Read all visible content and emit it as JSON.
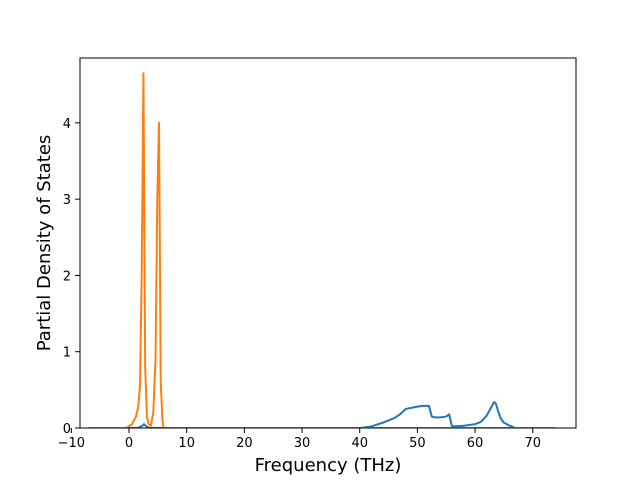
{
  "chart_data": {
    "type": "line",
    "title": "",
    "xlabel": "Frequency (THz)",
    "ylabel": "Partial Density of States",
    "xlim": [
      -8.5,
      77.5
    ],
    "ylim": [
      0,
      4.85
    ],
    "xticks": [
      -10,
      0,
      10,
      20,
      30,
      40,
      50,
      60,
      70
    ],
    "yticks": [
      0,
      1,
      2,
      3,
      4
    ],
    "grid": false,
    "legend": "none",
    "series": [
      {
        "color": "#1f77b4",
        "x": [
          -7,
          0,
          1.5,
          2.3,
          2.6,
          3.0,
          3.5,
          40,
          42,
          44,
          46,
          47,
          48,
          50,
          51,
          52,
          52.5,
          53,
          54,
          55,
          55.5,
          56,
          58,
          60,
          61,
          62,
          62.5,
          63,
          63.3,
          63.6,
          64,
          64.5,
          65,
          66,
          67,
          74
        ],
        "y": [
          0,
          0,
          0,
          0.03,
          0.05,
          0.02,
          0,
          0,
          0.02,
          0.07,
          0.13,
          0.18,
          0.25,
          0.28,
          0.29,
          0.29,
          0.15,
          0.14,
          0.14,
          0.15,
          0.18,
          0.02,
          0.03,
          0.05,
          0.08,
          0.16,
          0.23,
          0.3,
          0.34,
          0.32,
          0.22,
          0.12,
          0.07,
          0.03,
          0,
          0
        ]
      },
      {
        "color": "#ff7f0e",
        "x": [
          -7,
          -0.5,
          0.5,
          1.2,
          1.6,
          1.9,
          2.2,
          2.5,
          2.8,
          3.1,
          3.4,
          3.8,
          4.2,
          4.6,
          4.9,
          5.2,
          5.5,
          5.8,
          6.0,
          74
        ],
        "y": [
          0,
          0,
          0.05,
          0.15,
          0.28,
          0.55,
          2.0,
          4.65,
          0.8,
          0.15,
          0.05,
          0.03,
          0.2,
          0.9,
          3.0,
          4.0,
          0.6,
          0.1,
          0,
          0
        ]
      }
    ]
  }
}
